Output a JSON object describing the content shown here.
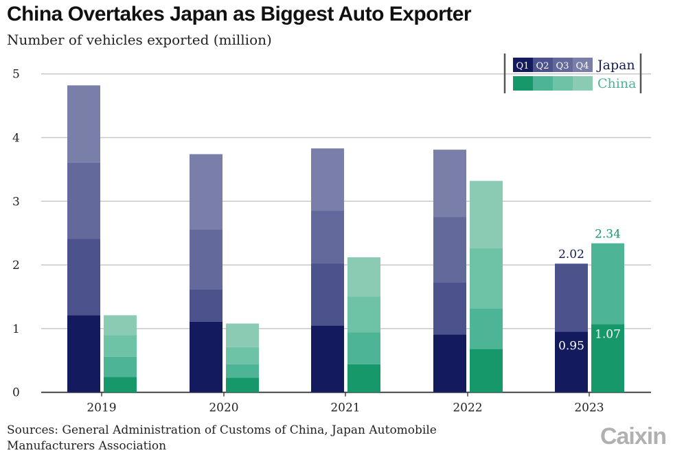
{
  "chart_data": {
    "type": "bar",
    "title": "China Overtakes Japan as Biggest Auto Exporter",
    "subtitle": "Number of vehicles exported (million)",
    "stacked": true,
    "categories": [
      "2019",
      "2020",
      "2021",
      "2022",
      "2023"
    ],
    "stack_segments": [
      "Q1",
      "Q2",
      "Q3",
      "Q4"
    ],
    "ylim": [
      0,
      5
    ],
    "yticks": [
      0,
      1,
      2,
      3,
      4,
      5
    ],
    "grid": true,
    "legend_placement": "top-right",
    "series": [
      {
        "name": "Japan",
        "color": "#131b5e",
        "segment_colors": [
          "#131b5e",
          "#4b528c",
          "#636a9b",
          "#7a7fa9"
        ],
        "quarterly_values": [
          [
            1.21,
            1.2,
            1.2,
            1.21
          ],
          [
            1.11,
            0.51,
            0.94,
            1.18
          ],
          [
            1.05,
            0.98,
            0.83,
            0.97
          ],
          [
            0.91,
            0.82,
            1.02,
            1.06
          ],
          [
            0.95,
            1.07
          ]
        ]
      },
      {
        "name": "China",
        "color": "#17986b",
        "segment_colors": [
          "#17986b",
          "#4db595",
          "#6ec2a6",
          "#8bcbb3"
        ],
        "quarterly_values": [
          [
            0.24,
            0.32,
            0.34,
            0.31
          ],
          [
            0.23,
            0.21,
            0.27,
            0.37
          ],
          [
            0.44,
            0.5,
            0.56,
            0.62
          ],
          [
            0.68,
            0.64,
            0.94,
            1.06
          ],
          [
            1.07,
            1.27
          ]
        ]
      }
    ],
    "annotations": [
      {
        "series": "Japan",
        "category": "2023",
        "text": "0.95",
        "position": "inside-Q1"
      },
      {
        "series": "Japan",
        "category": "2023",
        "text": "2.02",
        "position": "top"
      },
      {
        "series": "China",
        "category": "2023",
        "text": "1.07",
        "position": "inside-Q1"
      },
      {
        "series": "China",
        "category": "2023",
        "text": "2.34",
        "position": "top"
      }
    ]
  },
  "source": "Sources: General Administration of Customs of China, Japan Automobile Manufacturers Association",
  "logo": "Caixin"
}
